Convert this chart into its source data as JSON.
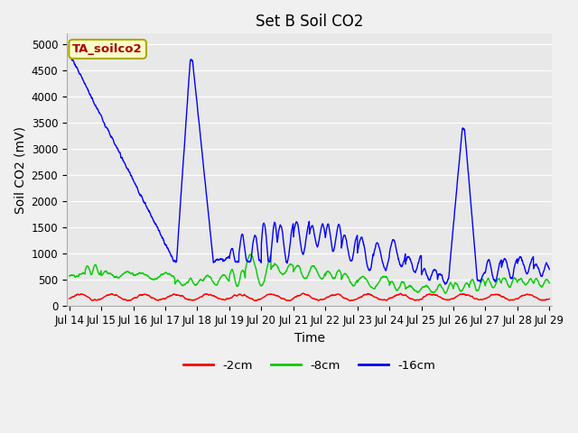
{
  "title": "Set B Soil CO2",
  "ylabel": "Soil CO2 (mV)",
  "xlabel": "Time",
  "legend_label": "TA_soilco2",
  "series_labels": [
    "-2cm",
    "-8cm",
    "-16cm"
  ],
  "series_colors": [
    "#ff0000",
    "#00cc00",
    "#0000ff"
  ],
  "xlim_days": [
    13.92,
    29.08
  ],
  "ylim": [
    0,
    5200
  ],
  "yticks": [
    0,
    500,
    1000,
    1500,
    2000,
    2500,
    3000,
    3500,
    4000,
    4500,
    5000
  ],
  "xtick_labels": [
    "Jul 14",
    "Jul 15",
    "Jul 16",
    "Jul 17",
    "Jul 18",
    "Jul 19",
    "Jul 20",
    "Jul 21",
    "Jul 22",
    "Jul 23",
    "Jul 24",
    "Jul 25",
    "Jul 26",
    "Jul 27",
    "Jul 28",
    "Jul 29"
  ],
  "xtick_positions": [
    14,
    15,
    16,
    17,
    18,
    19,
    20,
    21,
    22,
    23,
    24,
    25,
    26,
    27,
    28,
    29
  ],
  "plot_bg": "#e8e8e8",
  "fig_bg": "#f0f0f0",
  "grid_color": "#ffffff",
  "legend_box_color": "#ffffcc",
  "legend_box_edge": "#aaaa00",
  "legend_text_color": "#aa0000",
  "title_fontsize": 12,
  "axis_label_fontsize": 10,
  "tick_fontsize": 8.5,
  "line_width": 1.0
}
